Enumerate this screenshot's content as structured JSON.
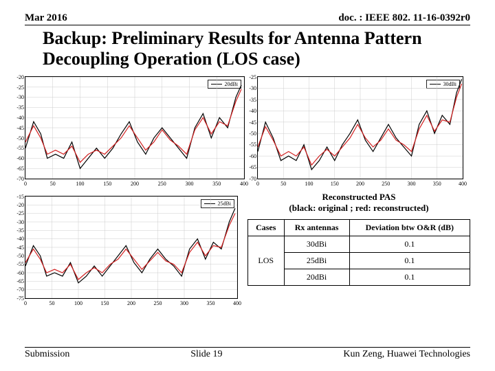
{
  "header": {
    "date": "Mar 2016",
    "doc": "doc. : IEEE 802. 11-16-0392r0"
  },
  "title": "Backup: Preliminary Results for Antenna Pattern Decoupling Operation (LOS case)",
  "chart1": {
    "type": "line",
    "legend": "20dBi",
    "xlim": [
      0,
      400
    ],
    "ylim": [
      -70,
      -20
    ],
    "xticks": [
      0,
      50,
      100,
      150,
      200,
      250,
      300,
      350,
      400
    ],
    "yticks": [
      -20,
      -25,
      -30,
      -35,
      -40,
      -45,
      -50,
      -55,
      -60,
      -65,
      -70
    ],
    "colors": {
      "black": "#000000",
      "red": "#d21f1f",
      "grid": "#cccccc"
    },
    "black_points": [
      [
        0,
        -55
      ],
      [
        15,
        -42
      ],
      [
        28,
        -48
      ],
      [
        40,
        -60
      ],
      [
        55,
        -58
      ],
      [
        70,
        -60
      ],
      [
        85,
        -52
      ],
      [
        100,
        -65
      ],
      [
        115,
        -60
      ],
      [
        130,
        -55
      ],
      [
        145,
        -60
      ],
      [
        160,
        -55
      ],
      [
        175,
        -48
      ],
      [
        190,
        -42
      ],
      [
        205,
        -52
      ],
      [
        220,
        -58
      ],
      [
        235,
        -50
      ],
      [
        250,
        -45
      ],
      [
        265,
        -50
      ],
      [
        280,
        -55
      ],
      [
        295,
        -60
      ],
      [
        310,
        -45
      ],
      [
        325,
        -38
      ],
      [
        340,
        -50
      ],
      [
        355,
        -40
      ],
      [
        370,
        -45
      ],
      [
        385,
        -30
      ],
      [
        395,
        -24
      ]
    ],
    "red_points": [
      [
        0,
        -52
      ],
      [
        15,
        -44
      ],
      [
        28,
        -50
      ],
      [
        40,
        -58
      ],
      [
        55,
        -56
      ],
      [
        70,
        -58
      ],
      [
        85,
        -54
      ],
      [
        100,
        -62
      ],
      [
        115,
        -58
      ],
      [
        130,
        -56
      ],
      [
        145,
        -58
      ],
      [
        160,
        -54
      ],
      [
        175,
        -50
      ],
      [
        190,
        -44
      ],
      [
        205,
        -50
      ],
      [
        220,
        -56
      ],
      [
        235,
        -52
      ],
      [
        250,
        -46
      ],
      [
        265,
        -51
      ],
      [
        280,
        -54
      ],
      [
        295,
        -58
      ],
      [
        310,
        -46
      ],
      [
        325,
        -40
      ],
      [
        340,
        -48
      ],
      [
        355,
        -42
      ],
      [
        370,
        -44
      ],
      [
        385,
        -32
      ],
      [
        395,
        -26
      ]
    ]
  },
  "chart2": {
    "type": "line",
    "legend": "30dBi",
    "xlim": [
      0,
      400
    ],
    "ylim": [
      -70,
      -25
    ],
    "xticks": [
      0,
      50,
      100,
      150,
      200,
      250,
      300,
      350,
      400
    ],
    "yticks": [
      -25,
      -30,
      -35,
      -40,
      -45,
      -50,
      -55,
      -60,
      -65,
      -70
    ],
    "colors": {
      "black": "#000000",
      "red": "#d21f1f",
      "grid": "#cccccc"
    },
    "black_points": [
      [
        0,
        -58
      ],
      [
        15,
        -45
      ],
      [
        30,
        -52
      ],
      [
        45,
        -62
      ],
      [
        60,
        -60
      ],
      [
        75,
        -62
      ],
      [
        90,
        -55
      ],
      [
        105,
        -66
      ],
      [
        120,
        -62
      ],
      [
        135,
        -56
      ],
      [
        150,
        -62
      ],
      [
        165,
        -55
      ],
      [
        180,
        -50
      ],
      [
        195,
        -44
      ],
      [
        210,
        -53
      ],
      [
        225,
        -58
      ],
      [
        240,
        -52
      ],
      [
        255,
        -46
      ],
      [
        270,
        -52
      ],
      [
        285,
        -56
      ],
      [
        300,
        -60
      ],
      [
        315,
        -46
      ],
      [
        330,
        -40
      ],
      [
        345,
        -50
      ],
      [
        360,
        -42
      ],
      [
        375,
        -46
      ],
      [
        388,
        -32
      ],
      [
        398,
        -26
      ]
    ],
    "red_points": [
      [
        0,
        -56
      ],
      [
        15,
        -47
      ],
      [
        30,
        -53
      ],
      [
        45,
        -60
      ],
      [
        60,
        -58
      ],
      [
        75,
        -60
      ],
      [
        90,
        -56
      ],
      [
        105,
        -64
      ],
      [
        120,
        -60
      ],
      [
        135,
        -57
      ],
      [
        150,
        -60
      ],
      [
        165,
        -56
      ],
      [
        180,
        -52
      ],
      [
        195,
        -46
      ],
      [
        210,
        -52
      ],
      [
        225,
        -56
      ],
      [
        240,
        -53
      ],
      [
        255,
        -48
      ],
      [
        270,
        -53
      ],
      [
        285,
        -55
      ],
      [
        300,
        -58
      ],
      [
        315,
        -48
      ],
      [
        330,
        -42
      ],
      [
        345,
        -49
      ],
      [
        360,
        -44
      ],
      [
        375,
        -45
      ],
      [
        388,
        -34
      ],
      [
        398,
        -28
      ]
    ]
  },
  "chart3": {
    "type": "line",
    "legend": "25dBi",
    "xlim": [
      0,
      400
    ],
    "ylim": [
      -75,
      -15
    ],
    "xticks": [
      0,
      50,
      100,
      150,
      200,
      250,
      300,
      350,
      400
    ],
    "yticks": [
      -15,
      -20,
      -25,
      -30,
      -35,
      -40,
      -45,
      -50,
      -55,
      -60,
      -65,
      -70,
      -75
    ],
    "colors": {
      "black": "#000000",
      "red": "#d21f1f",
      "grid": "#cccccc"
    },
    "black_points": [
      [
        0,
        -56
      ],
      [
        15,
        -44
      ],
      [
        28,
        -50
      ],
      [
        40,
        -62
      ],
      [
        55,
        -60
      ],
      [
        70,
        -62
      ],
      [
        85,
        -54
      ],
      [
        100,
        -66
      ],
      [
        115,
        -62
      ],
      [
        130,
        -56
      ],
      [
        145,
        -62
      ],
      [
        160,
        -56
      ],
      [
        175,
        -50
      ],
      [
        190,
        -44
      ],
      [
        205,
        -54
      ],
      [
        220,
        -60
      ],
      [
        235,
        -52
      ],
      [
        250,
        -46
      ],
      [
        265,
        -52
      ],
      [
        280,
        -56
      ],
      [
        295,
        -62
      ],
      [
        310,
        -46
      ],
      [
        325,
        -40
      ],
      [
        340,
        -52
      ],
      [
        355,
        -42
      ],
      [
        370,
        -46
      ],
      [
        385,
        -30
      ],
      [
        396,
        -22
      ]
    ],
    "red_points": [
      [
        0,
        -54
      ],
      [
        15,
        -46
      ],
      [
        28,
        -52
      ],
      [
        40,
        -60
      ],
      [
        55,
        -58
      ],
      [
        70,
        -60
      ],
      [
        85,
        -55
      ],
      [
        100,
        -64
      ],
      [
        115,
        -60
      ],
      [
        130,
        -57
      ],
      [
        145,
        -60
      ],
      [
        160,
        -55
      ],
      [
        175,
        -52
      ],
      [
        190,
        -46
      ],
      [
        205,
        -52
      ],
      [
        220,
        -58
      ],
      [
        235,
        -53
      ],
      [
        250,
        -48
      ],
      [
        265,
        -53
      ],
      [
        280,
        -55
      ],
      [
        295,
        -60
      ],
      [
        310,
        -48
      ],
      [
        325,
        -42
      ],
      [
        340,
        -50
      ],
      [
        355,
        -44
      ],
      [
        370,
        -45
      ],
      [
        385,
        -32
      ],
      [
        396,
        -25
      ]
    ]
  },
  "caption": {
    "line1": "Reconstructed PAS",
    "line2": "(black: original ;   red: reconstructed)"
  },
  "table": {
    "columns": [
      "Cases",
      "Rx antennas",
      "Deviation btw O&R (dB)"
    ],
    "rows": [
      [
        "",
        "30dBi",
        "0.1"
      ],
      [
        "LOS",
        "25dBi",
        "0.1"
      ],
      [
        "",
        "20dBi",
        "0.1"
      ]
    ]
  },
  "footer": {
    "left": "Submission",
    "center": "Slide 19",
    "right": "Kun Zeng, Huawei Technologies"
  }
}
